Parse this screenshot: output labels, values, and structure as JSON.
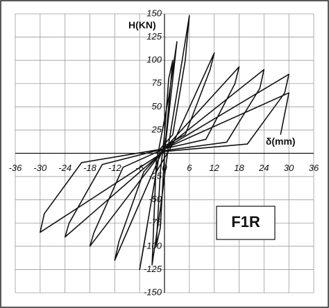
{
  "chart_data": {
    "type": "line",
    "x_label": "δ(mm)",
    "y_label": "H(KN)",
    "annotation": "F1R",
    "xlim": [
      -36,
      36
    ],
    "xticks": [
      -36,
      -30,
      -24,
      -18,
      -12,
      -6,
      0,
      6,
      12,
      18,
      24,
      30,
      36
    ],
    "ylim": [
      -150,
      150
    ],
    "yticks": [
      -150,
      -125,
      -100,
      -75,
      -50,
      -25,
      0,
      25,
      50,
      75,
      100,
      125,
      150
    ],
    "grid": true,
    "color": "#111111",
    "x": [
      0,
      2,
      1,
      0,
      -1,
      -2,
      -1,
      0,
      3,
      1,
      -2,
      -3,
      -1,
      1,
      6,
      5,
      2,
      -1,
      -6,
      -5,
      -2,
      2,
      12,
      11,
      5,
      0,
      -12,
      -11,
      -5,
      0,
      18,
      17,
      10,
      0,
      -18,
      -17,
      -10,
      0,
      24,
      23,
      15,
      0,
      -24,
      -23,
      -15,
      0,
      30,
      29,
      20,
      0,
      -30,
      -29,
      -20,
      0,
      30,
      28
    ],
    "values": [
      0,
      100,
      80,
      20,
      -20,
      -100,
      -80,
      0,
      120,
      60,
      -10,
      -120,
      -60,
      10,
      148,
      100,
      20,
      5,
      -125,
      -100,
      -20,
      10,
      108,
      90,
      20,
      8,
      -115,
      -95,
      -20,
      5,
      93,
      75,
      15,
      5,
      -100,
      -85,
      -15,
      5,
      90,
      70,
      12,
      3,
      -90,
      -75,
      -12,
      5,
      85,
      65,
      10,
      2,
      -85,
      -65,
      -10,
      5,
      65,
      20
    ]
  }
}
